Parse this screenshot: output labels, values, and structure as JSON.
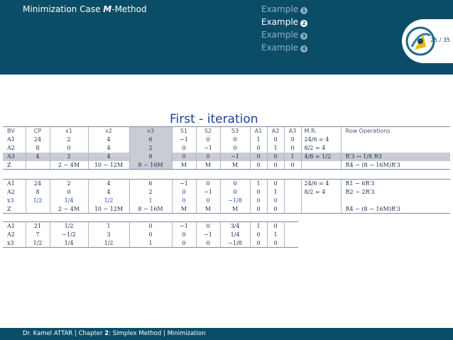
{
  "header": {
    "title_prefix": "Minimization Case ",
    "title_method": "M",
    "title_suffix": "-Method",
    "nav": [
      {
        "label": "Example",
        "bullet": "1",
        "current": false
      },
      {
        "label": "Example",
        "bullet": "2",
        "current": true
      },
      {
        "label": "Example",
        "bullet": "3",
        "current": false
      },
      {
        "label": "Example",
        "bullet": "4",
        "current": false
      }
    ],
    "page": "25 / 35",
    "logo": "university-logo"
  },
  "slide_title": "First - iteration",
  "table1": {
    "headers": [
      "BV",
      "CP",
      "x1",
      "x2",
      "x3",
      "S1",
      "S2",
      "S3",
      "A1",
      "A2",
      "A3",
      "M.R.",
      "Row Operations"
    ],
    "rows": [
      {
        "bv": "A1",
        "cells": [
          "24",
          "2",
          "4",
          "6",
          "−1",
          "0",
          "0",
          "1",
          "0",
          "0"
        ],
        "mr": "24/6 = 4",
        "ro": ""
      },
      {
        "bv": "A2",
        "cells": [
          "8",
          "0",
          "4",
          "2",
          "0",
          "−1",
          "0",
          "0",
          "1",
          "0"
        ],
        "mr": "8/2 = 4",
        "ro": ""
      },
      {
        "bv": "A3",
        "cells": [
          "4",
          "2",
          "4",
          "8",
          "0",
          "0",
          "−1",
          "0",
          "0",
          "1"
        ],
        "mr": "4/8 = 1/2",
        "ro": "R′3 ↔ 1/8 R3"
      },
      {
        "bv": "Z",
        "cells": [
          "",
          "2 − 4M",
          "10 − 12M",
          "8 − 16M",
          "M",
          "M",
          "M",
          "0",
          "0",
          "0"
        ],
        "mr": "",
        "ro": "R4 − (8 − 16M)R′3"
      }
    ]
  },
  "table2": {
    "rows": [
      {
        "bv": "A1",
        "cells": [
          "24",
          "2",
          "4",
          "6",
          "−1",
          "0",
          "0",
          "1",
          "0"
        ],
        "mr": "24/6 = 4",
        "ro": "R1 − 6R′3"
      },
      {
        "bv": "A2",
        "cells": [
          "8",
          "0",
          "4",
          "2",
          "0",
          "−1",
          "0",
          "0",
          "1"
        ],
        "mr": "8/2 = 4",
        "ro": "R2 − 2R′3"
      },
      {
        "bv": "x3",
        "cells": [
          "1/2",
          "1/4",
          "1/2",
          "1",
          "0",
          "0",
          "−1/8",
          "0",
          "0"
        ],
        "mr": "",
        "ro": ""
      },
      {
        "bv": "Z",
        "cells": [
          "",
          "2 − 4M",
          "10 − 12M",
          "8 − 16M",
          "M",
          "M",
          "M",
          "0",
          "0"
        ],
        "mr": "",
        "ro": "R4 − (8 − 16M)R′3"
      }
    ]
  },
  "table3": {
    "rows": [
      {
        "bv": "A1",
        "cells": [
          "21",
          "1/2",
          "1",
          "0",
          "−1",
          "0",
          "3/4",
          "1",
          "0"
        ]
      },
      {
        "bv": "A2",
        "cells": [
          "7",
          "−1/2",
          "3",
          "0",
          "0",
          "−1",
          "1/4",
          "0",
          "1"
        ]
      },
      {
        "bv": "x3",
        "cells": [
          "1/2",
          "1/4",
          "1/2",
          "1",
          "0",
          "0",
          "−1/8",
          "0",
          "0"
        ]
      }
    ]
  },
  "footer": {
    "author": "Dr. Kamel ATTAR",
    "chapter_label": "Chapter ",
    "chapter_num": "2",
    "chapter_title": ": Simplex Method",
    "section": "Minimization",
    "separator": " | "
  }
}
